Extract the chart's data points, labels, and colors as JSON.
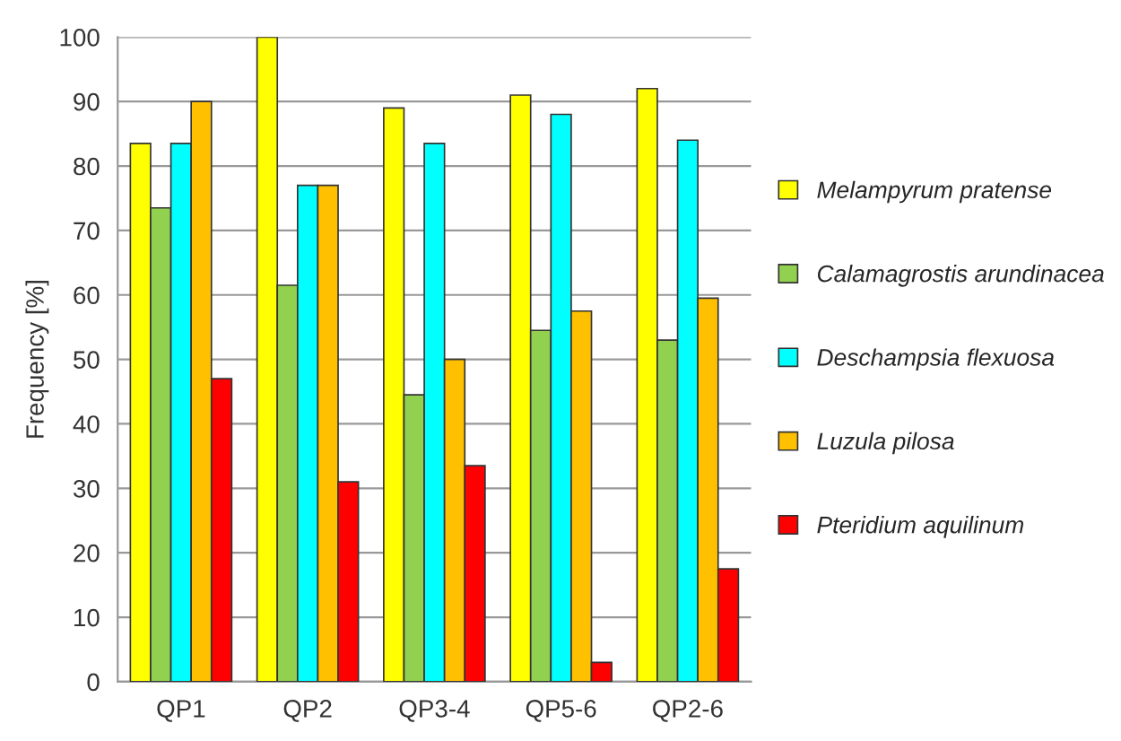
{
  "chart_data": {
    "type": "bar",
    "ylabel": "Frequency [%]",
    "categories": [
      "QP1",
      "QP2",
      "QP3-4",
      "QP5-6",
      "QP2-6"
    ],
    "series": [
      {
        "name": "Melampyrum pratense",
        "color": "#ffff00",
        "values": [
          83.5,
          100,
          89,
          91,
          92
        ]
      },
      {
        "name": "Calamagrostis arundinacea",
        "color": "#92d050",
        "values": [
          73.5,
          61.5,
          44.5,
          54.5,
          53
        ]
      },
      {
        "name": "Deschampsia flexuosa",
        "color": "#00ffff",
        "values": [
          83.5,
          77,
          83.5,
          88,
          84
        ]
      },
      {
        "name": "Luzula pilosa",
        "color": "#ffc000",
        "values": [
          90,
          77,
          50,
          57.5,
          59.5
        ]
      },
      {
        "name": "Pteridium aquilinum",
        "color": "#ff0000",
        "values": [
          47,
          31,
          33.5,
          3,
          17.5
        ]
      }
    ],
    "ylim": [
      0,
      100
    ],
    "yticks": [
      0,
      10,
      20,
      30,
      40,
      50,
      60,
      70,
      80,
      90,
      100
    ],
    "grid": "y",
    "legend": "right"
  }
}
